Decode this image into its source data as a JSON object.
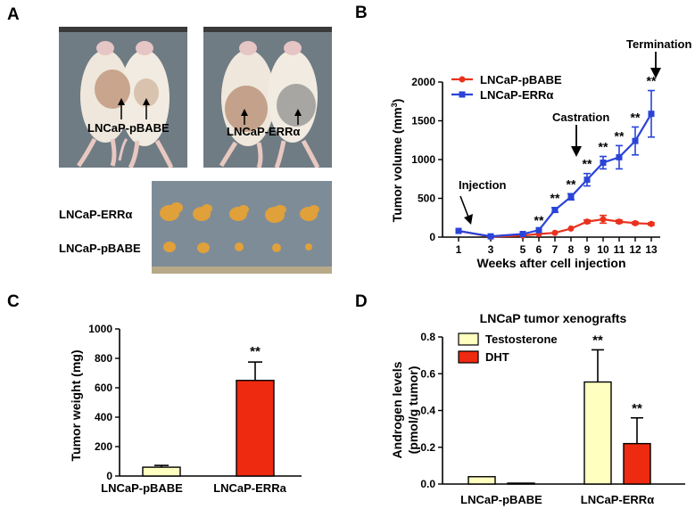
{
  "panels": {
    "a": "A",
    "b": "B",
    "c": "C",
    "d": "D"
  },
  "colors": {
    "pbabe": "#e8321e",
    "erra": "#2a44d8",
    "testosterone": "#ffffc0",
    "dht": "#ee2a10"
  },
  "photos": {
    "photo1_label": "LNCaP-pBABE",
    "photo2_label": "LNCaP-ERRα",
    "tumor_row1_label": "LNCaP-ERRα",
    "tumor_row2_label": "LNCaP-pBABE"
  },
  "chart_data": [
    {
      "id": "B",
      "type": "line",
      "xlabel": "Weeks after cell injection",
      "ylabel": "Tumor volume (mm",
      "ylabel_sup": "3",
      "ylabel_close": ")",
      "xlim": [
        1,
        13
      ],
      "ylim": [
        0,
        2000
      ],
      "x_ticks": [
        1,
        3,
        5,
        6,
        7,
        8,
        9,
        10,
        11,
        12,
        13
      ],
      "y_ticks": [
        0,
        500,
        1000,
        1500,
        2000
      ],
      "legend": [
        "LNCaP-pBABE",
        "LNCaP-ERRα"
      ],
      "series": [
        {
          "name": "LNCaP-pBABE",
          "x": [
            1,
            3,
            5,
            6,
            7,
            8,
            9,
            10,
            11,
            12,
            13
          ],
          "values": [
            80,
            5,
            20,
            40,
            55,
            110,
            200,
            230,
            200,
            180,
            170
          ],
          "err": [
            0,
            0,
            0,
            0,
            0,
            0,
            20,
            50,
            20,
            15,
            15
          ]
        },
        {
          "name": "LNCaP-ERRα",
          "x": [
            1,
            3,
            5,
            6,
            7,
            8,
            9,
            10,
            11,
            12,
            13
          ],
          "values": [
            80,
            10,
            40,
            90,
            350,
            520,
            740,
            960,
            1030,
            1240,
            1590
          ],
          "err": [
            0,
            0,
            0,
            0,
            30,
            40,
            80,
            80,
            150,
            180,
            300
          ]
        }
      ],
      "sig": [
        {
          "x": 6,
          "label": "**"
        },
        {
          "x": 7,
          "label": "**"
        },
        {
          "x": 8,
          "label": "**"
        },
        {
          "x": 9,
          "label": "**"
        },
        {
          "x": 10,
          "label": "**"
        },
        {
          "x": 11,
          "label": "**"
        },
        {
          "x": 12,
          "label": "**"
        },
        {
          "x": 13,
          "label": "**"
        }
      ],
      "annotations": [
        "Injection",
        "Castration",
        "Termination"
      ]
    },
    {
      "id": "C",
      "type": "bar",
      "ylabel": "Tumor weight (mg)",
      "ylim": [
        0,
        1000
      ],
      "y_ticks": [
        0,
        200,
        400,
        600,
        800,
        1000
      ],
      "categories": [
        "LNCaP-pBABE",
        "LNCaP-ERRa"
      ],
      "values": [
        60,
        650
      ],
      "err": [
        12,
        125
      ],
      "sig": [
        "",
        "**"
      ]
    },
    {
      "id": "D",
      "type": "bar",
      "title": "LNCaP tumor xenografts",
      "ylabel_line1": "Androgen levels",
      "ylabel_line2": "(pmol/g tumor)",
      "ylim": [
        0,
        0.8
      ],
      "y_ticks": [
        "0.0",
        "0.2",
        "0.4",
        "0.6",
        "0.8"
      ],
      "categories": [
        "LNCaP-pBABE",
        "LNCaP-ERRα"
      ],
      "series": [
        {
          "name": "Testosterone",
          "values": [
            0.04,
            0.555
          ],
          "err": [
            0,
            0.175
          ]
        },
        {
          "name": "DHT",
          "values": [
            0.005,
            0.22
          ],
          "err": [
            0,
            0.14
          ]
        }
      ],
      "sig": [
        "**",
        "**"
      ]
    }
  ]
}
